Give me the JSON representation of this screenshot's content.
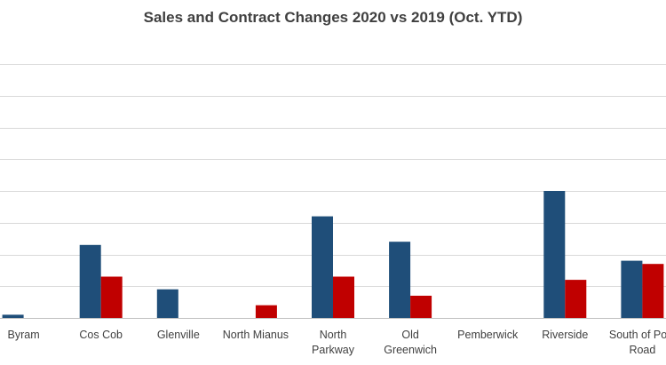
{
  "chart_data": {
    "type": "bar",
    "title": "Sales and Contract Changes 2020 vs 2019 (Oct. YTD)",
    "categories": [
      "Byram",
      "Cos Cob",
      "Glenville",
      "North Mianus",
      "North Parkway",
      "Old Greenwich",
      "Pemberwick",
      "Riverside",
      "South of Post Road"
    ],
    "category_lines": [
      [
        "Byram"
      ],
      [
        "Cos Cob"
      ],
      [
        "Glenville"
      ],
      [
        "North Mianus"
      ],
      [
        "North",
        "Parkway"
      ],
      [
        "Old",
        "Greenwich"
      ],
      [
        "Pemberwick"
      ],
      [
        "Riverside"
      ],
      [
        "South of Post",
        "Road"
      ]
    ],
    "series": [
      {
        "color": "#1f4e79",
        "values": [
          0.1,
          2.3,
          0.9,
          0,
          3.2,
          2.4,
          0,
          4.0,
          1.8
        ]
      },
      {
        "color": "#c00000",
        "values": [
          0,
          1.3,
          0,
          0.4,
          1.3,
          0.7,
          0,
          1.2,
          1.7
        ]
      }
    ],
    "ylim": [
      0,
      8
    ],
    "grid": true,
    "legend": "none"
  }
}
